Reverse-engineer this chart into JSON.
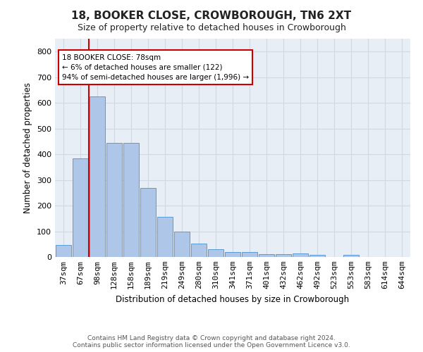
{
  "title": "18, BOOKER CLOSE, CROWBOROUGH, TN6 2XT",
  "subtitle": "Size of property relative to detached houses in Crowborough",
  "xlabel": "Distribution of detached houses by size in Crowborough",
  "ylabel": "Number of detached properties",
  "categories": [
    "37sqm",
    "67sqm",
    "98sqm",
    "128sqm",
    "158sqm",
    "189sqm",
    "219sqm",
    "249sqm",
    "280sqm",
    "310sqm",
    "341sqm",
    "371sqm",
    "401sqm",
    "432sqm",
    "462sqm",
    "492sqm",
    "523sqm",
    "553sqm",
    "583sqm",
    "614sqm",
    "644sqm"
  ],
  "values": [
    47,
    385,
    625,
    445,
    445,
    268,
    155,
    100,
    52,
    30,
    18,
    18,
    12,
    12,
    15,
    8,
    0,
    8,
    0,
    0,
    0
  ],
  "bar_color": "#aec6e8",
  "bar_edge_color": "#5b9bd5",
  "vline_color": "#cc0000",
  "annotation_text": "18 BOOKER CLOSE: 78sqm\n← 6% of detached houses are smaller (122)\n94% of semi-detached houses are larger (1,996) →",
  "annotation_box_color": "#ffffff",
  "annotation_box_edge_color": "#cc0000",
  "ylim": [
    0,
    850
  ],
  "yticks": [
    0,
    100,
    200,
    300,
    400,
    500,
    600,
    700,
    800
  ],
  "grid_color": "#d0d8e4",
  "bg_color": "#e8eef5",
  "footer_line1": "Contains HM Land Registry data © Crown copyright and database right 2024.",
  "footer_line2": "Contains public sector information licensed under the Open Government Licence v3.0."
}
